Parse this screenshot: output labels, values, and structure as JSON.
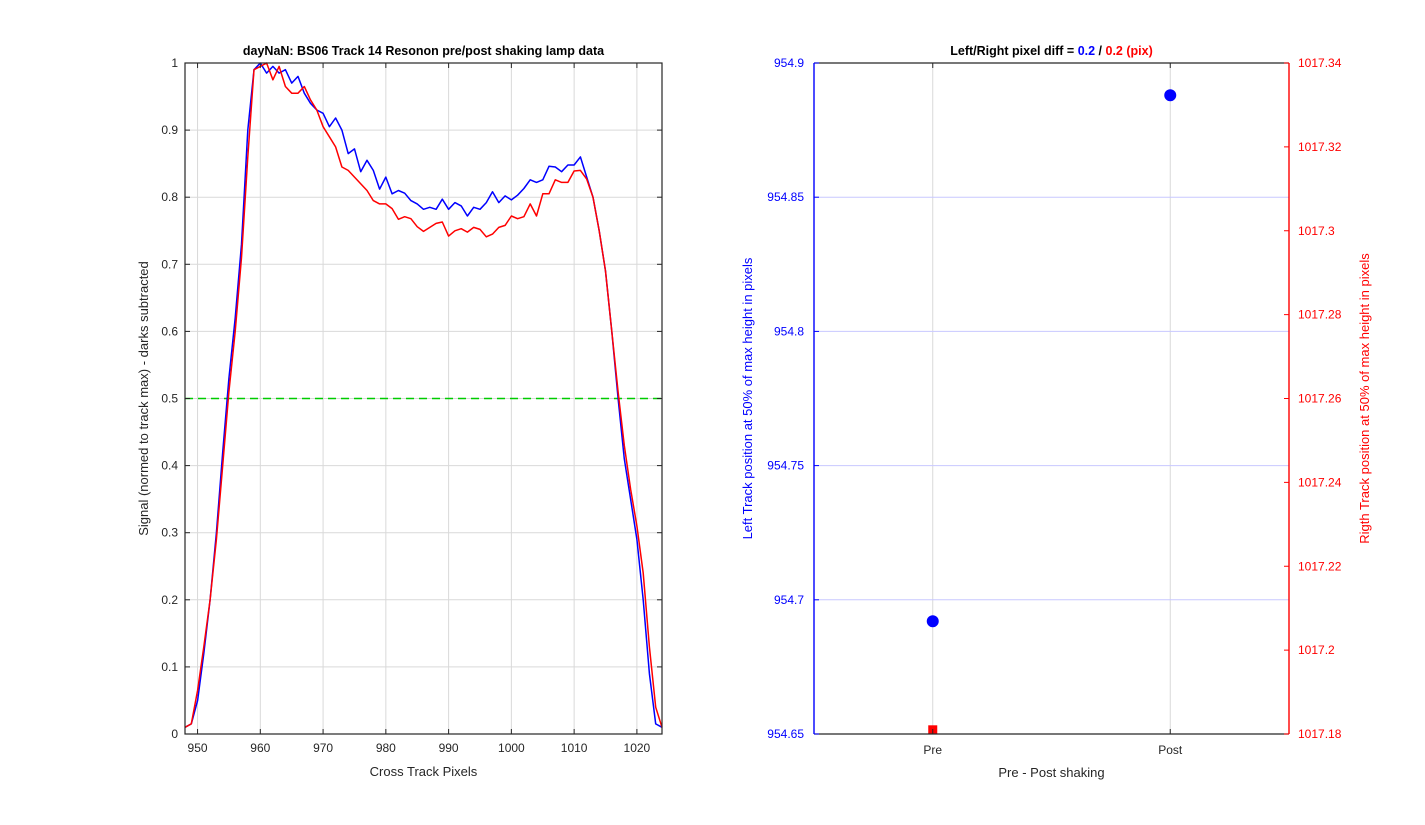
{
  "figure": {
    "background": "#ffffff",
    "colors": {
      "blue": "#0000ff",
      "red": "#ff0000",
      "green": "#00cc00",
      "grid": "#d9d9d9",
      "grid_blue": "#c8c8ff",
      "axis": "#262626"
    }
  },
  "chart_data": [
    {
      "type": "line",
      "title": "dayNaN: BS06  Track 14 Resonon pre/post shaking lamp data",
      "xlabel": "Cross Track Pixels",
      "ylabel": "Signal (normed to track max) - darks subtracted",
      "xlim": [
        948,
        1024
      ],
      "ylim": [
        0,
        1
      ],
      "xticks": [
        950,
        960,
        970,
        980,
        990,
        1000,
        1010,
        1020
      ],
      "yticks": [
        0,
        0.1,
        0.2,
        0.3,
        0.4,
        0.5,
        0.6,
        0.7,
        0.8,
        0.9,
        1
      ],
      "grid": true,
      "x": [
        948,
        949,
        950,
        951,
        952,
        953,
        954,
        955,
        956,
        957,
        958,
        959,
        960,
        961,
        962,
        963,
        964,
        965,
        966,
        967,
        968,
        969,
        970,
        971,
        972,
        973,
        974,
        975,
        976,
        977,
        978,
        979,
        980,
        981,
        982,
        983,
        984,
        985,
        986,
        987,
        988,
        989,
        990,
        991,
        992,
        993,
        994,
        995,
        996,
        997,
        998,
        999,
        1000,
        1001,
        1002,
        1003,
        1004,
        1005,
        1006,
        1007,
        1008,
        1009,
        1010,
        1011,
        1012,
        1013,
        1014,
        1015,
        1016,
        1017,
        1018,
        1019,
        1020,
        1021,
        1022,
        1023,
        1024
      ],
      "series": [
        {
          "color": "#0000ff",
          "values": [
            0.01,
            0.015,
            0.05,
            0.12,
            0.2,
            0.3,
            0.42,
            0.53,
            0.62,
            0.73,
            0.9,
            0.99,
            1.0,
            0.985,
            0.995,
            0.985,
            0.99,
            0.97,
            0.98,
            0.955,
            0.94,
            0.93,
            0.925,
            0.905,
            0.918,
            0.9,
            0.865,
            0.872,
            0.838,
            0.855,
            0.84,
            0.812,
            0.83,
            0.805,
            0.81,
            0.806,
            0.795,
            0.79,
            0.782,
            0.785,
            0.782,
            0.797,
            0.782,
            0.792,
            0.787,
            0.772,
            0.785,
            0.782,
            0.792,
            0.808,
            0.792,
            0.802,
            0.796,
            0.803,
            0.813,
            0.826,
            0.822,
            0.826,
            0.846,
            0.845,
            0.838,
            0.848,
            0.848,
            0.86,
            0.83,
            0.8,
            0.75,
            0.69,
            0.6,
            0.5,
            0.41,
            0.35,
            0.29,
            0.2,
            0.09,
            0.015,
            0.01
          ]
        },
        {
          "color": "#ff0000",
          "values": [
            0.01,
            0.015,
            0.065,
            0.13,
            0.2,
            0.29,
            0.4,
            0.51,
            0.6,
            0.71,
            0.86,
            0.99,
            0.995,
            1.0,
            0.975,
            0.995,
            0.965,
            0.955,
            0.955,
            0.965,
            0.945,
            0.93,
            0.905,
            0.89,
            0.875,
            0.845,
            0.84,
            0.83,
            0.82,
            0.81,
            0.795,
            0.79,
            0.79,
            0.783,
            0.767,
            0.771,
            0.768,
            0.756,
            0.749,
            0.755,
            0.761,
            0.763,
            0.742,
            0.75,
            0.753,
            0.748,
            0.755,
            0.752,
            0.741,
            0.745,
            0.755,
            0.758,
            0.772,
            0.768,
            0.771,
            0.79,
            0.772,
            0.805,
            0.805,
            0.826,
            0.822,
            0.822,
            0.839,
            0.84,
            0.827,
            0.8,
            0.75,
            0.69,
            0.6,
            0.51,
            0.43,
            0.365,
            0.31,
            0.24,
            0.13,
            0.04,
            0.01
          ]
        }
      ],
      "reference_line": {
        "y": 0.5,
        "color": "#00cc00",
        "style": "dashed"
      }
    },
    {
      "type": "scatter",
      "title": "Left/Right pixel diff = ",
      "title_parts": [
        {
          "text": "Left/Right pixel diff = ",
          "color": "#000000"
        },
        {
          "text": "0.2",
          "color": "#0000ff"
        },
        {
          "text": " / ",
          "color": "#000000"
        },
        {
          "text": "0.2 (pix)",
          "color": "#ff0000"
        }
      ],
      "xlabel": "Pre - Post shaking",
      "categories": [
        "Pre",
        "Post"
      ],
      "xlim": [
        0.5,
        2.5
      ],
      "y_left": {
        "label": "Left Track position at 50% of max height in pixels",
        "color": "#0000ff",
        "lim": [
          954.65,
          954.9
        ],
        "ticks": [
          "954.65",
          "954.7",
          "954.75",
          "954.8",
          "954.85",
          "954.9"
        ]
      },
      "y_right": {
        "label": "Rigth Track position at 50% of max height in pixels",
        "color": "#ff0000",
        "lim": [
          1017.18,
          1017.34
        ],
        "ticks": [
          "1017.18",
          "1017.2",
          "1017.22",
          "1017.24",
          "1017.26",
          "1017.28",
          "1017.3",
          "1017.32",
          "1017.34"
        ]
      },
      "grid": true,
      "series": [
        {
          "axis": "left",
          "marker": "circle",
          "color": "#0000ff",
          "x": [
            1,
            2
          ],
          "values": [
            954.692,
            954.888
          ]
        },
        {
          "axis": "right",
          "marker": "square",
          "color": "#ff0000",
          "x": [
            1
          ],
          "values": [
            1017.181
          ]
        }
      ]
    }
  ]
}
